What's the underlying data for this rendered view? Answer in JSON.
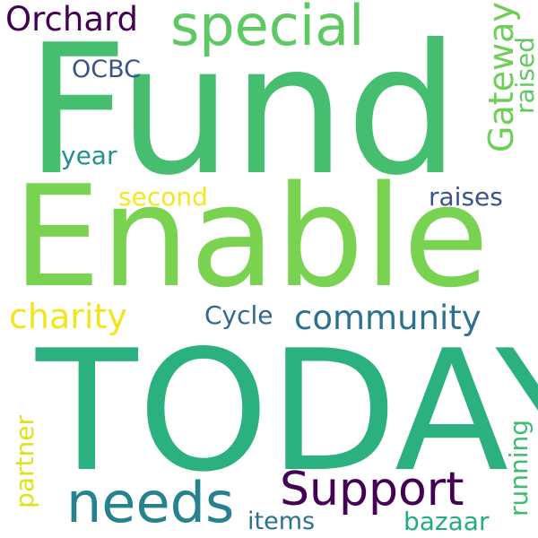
{
  "words": [
    {
      "text": "Fund",
      "color": "#45bf6f"
    },
    {
      "text": "Enable",
      "color": "#7ad251"
    },
    {
      "text": "TODAY",
      "color": "#2bb07f"
    },
    {
      "text": "special",
      "color": "#5ec962"
    },
    {
      "text": "Orchard",
      "color": "#440154"
    },
    {
      "text": "OCBC",
      "color": "#3b528b"
    },
    {
      "text": "Gateway",
      "color": "#6ece58"
    },
    {
      "text": "raised",
      "color": "#5ec962"
    },
    {
      "text": "year",
      "color": "#21918c"
    },
    {
      "text": "second",
      "color": "#f5e61f"
    },
    {
      "text": "raises",
      "color": "#3b528b"
    },
    {
      "text": "charity",
      "color": "#f1e51d"
    },
    {
      "text": "Cycle",
      "color": "#31688e"
    },
    {
      "text": "community",
      "color": "#2c728e"
    },
    {
      "text": "needs",
      "color": "#26828e"
    },
    {
      "text": "Support",
      "color": "#440154"
    },
    {
      "text": "partner",
      "color": "#dde318"
    },
    {
      "text": "running",
      "color": "#3fbc73"
    },
    {
      "text": "items",
      "color": "#2c728e"
    },
    {
      "text": "bazaar",
      "color": "#25ab82"
    }
  ]
}
